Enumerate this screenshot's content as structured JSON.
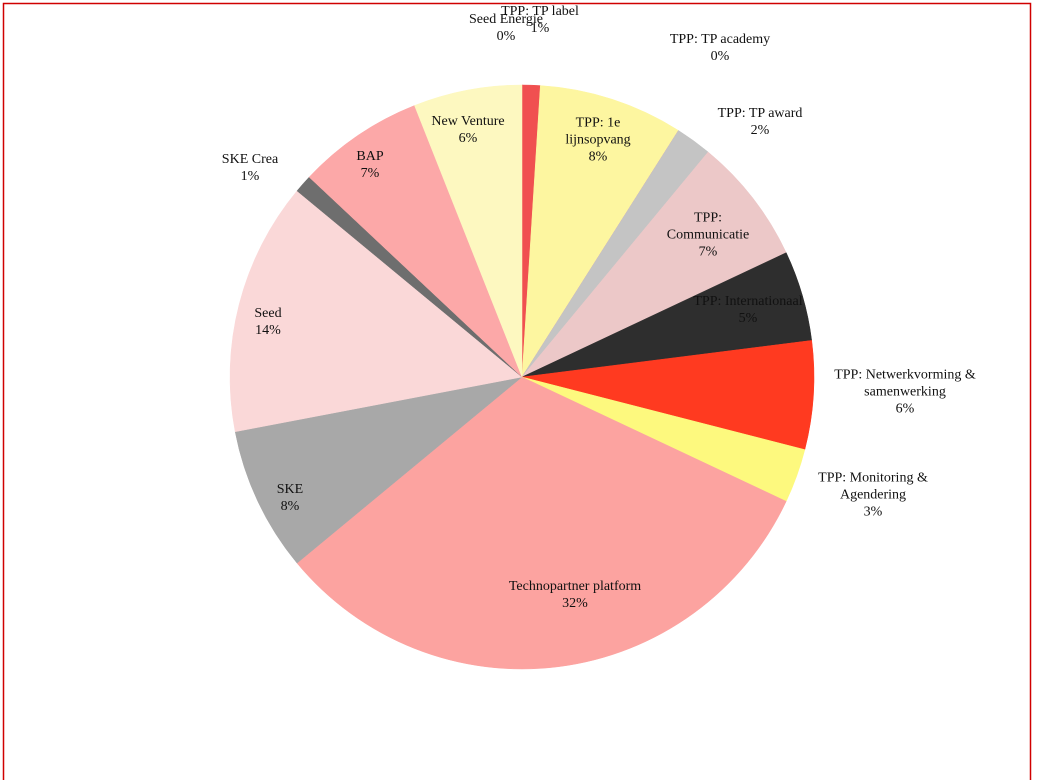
{
  "chart_data": {
    "type": "pie",
    "categories": [
      "Seed Energie",
      "TPP: TP label",
      "TPP: 1e lijnsopvang",
      "TPP: TP academy",
      "TPP: TP award",
      "TPP: Communicatie",
      "TPP: Internationaal",
      "TPP: Netwerkvorming & samenwerking",
      "TPP: Monitoring & Agendering",
      "Technopartner platform",
      "SKE",
      "Seed",
      "SKE Crea",
      "BAP",
      "New Venture"
    ],
    "values": [
      0,
      1,
      8,
      0,
      2,
      7,
      5,
      6,
      3,
      32,
      8,
      14,
      1,
      7,
      6
    ],
    "value_labels": [
      "0%",
      "1%",
      "8%",
      "0%",
      "2%",
      "7%",
      "5%",
      "6%",
      "3%",
      "32%",
      "8%",
      "14%",
      "1%",
      "7%",
      "6%"
    ],
    "colors": [
      "#f6c9c9",
      "#f05050",
      "#fdf6a0",
      "#f0a0a0",
      "#c4c4c4",
      "#ecc8c8",
      "#2e2e2e",
      "#ff3a20",
      "#fdf97e",
      "#fca3a0",
      "#a8a8a8",
      "#fad8d8",
      "#6e6e6e",
      "#fca8a8",
      "#fdf8c0"
    ]
  }
}
